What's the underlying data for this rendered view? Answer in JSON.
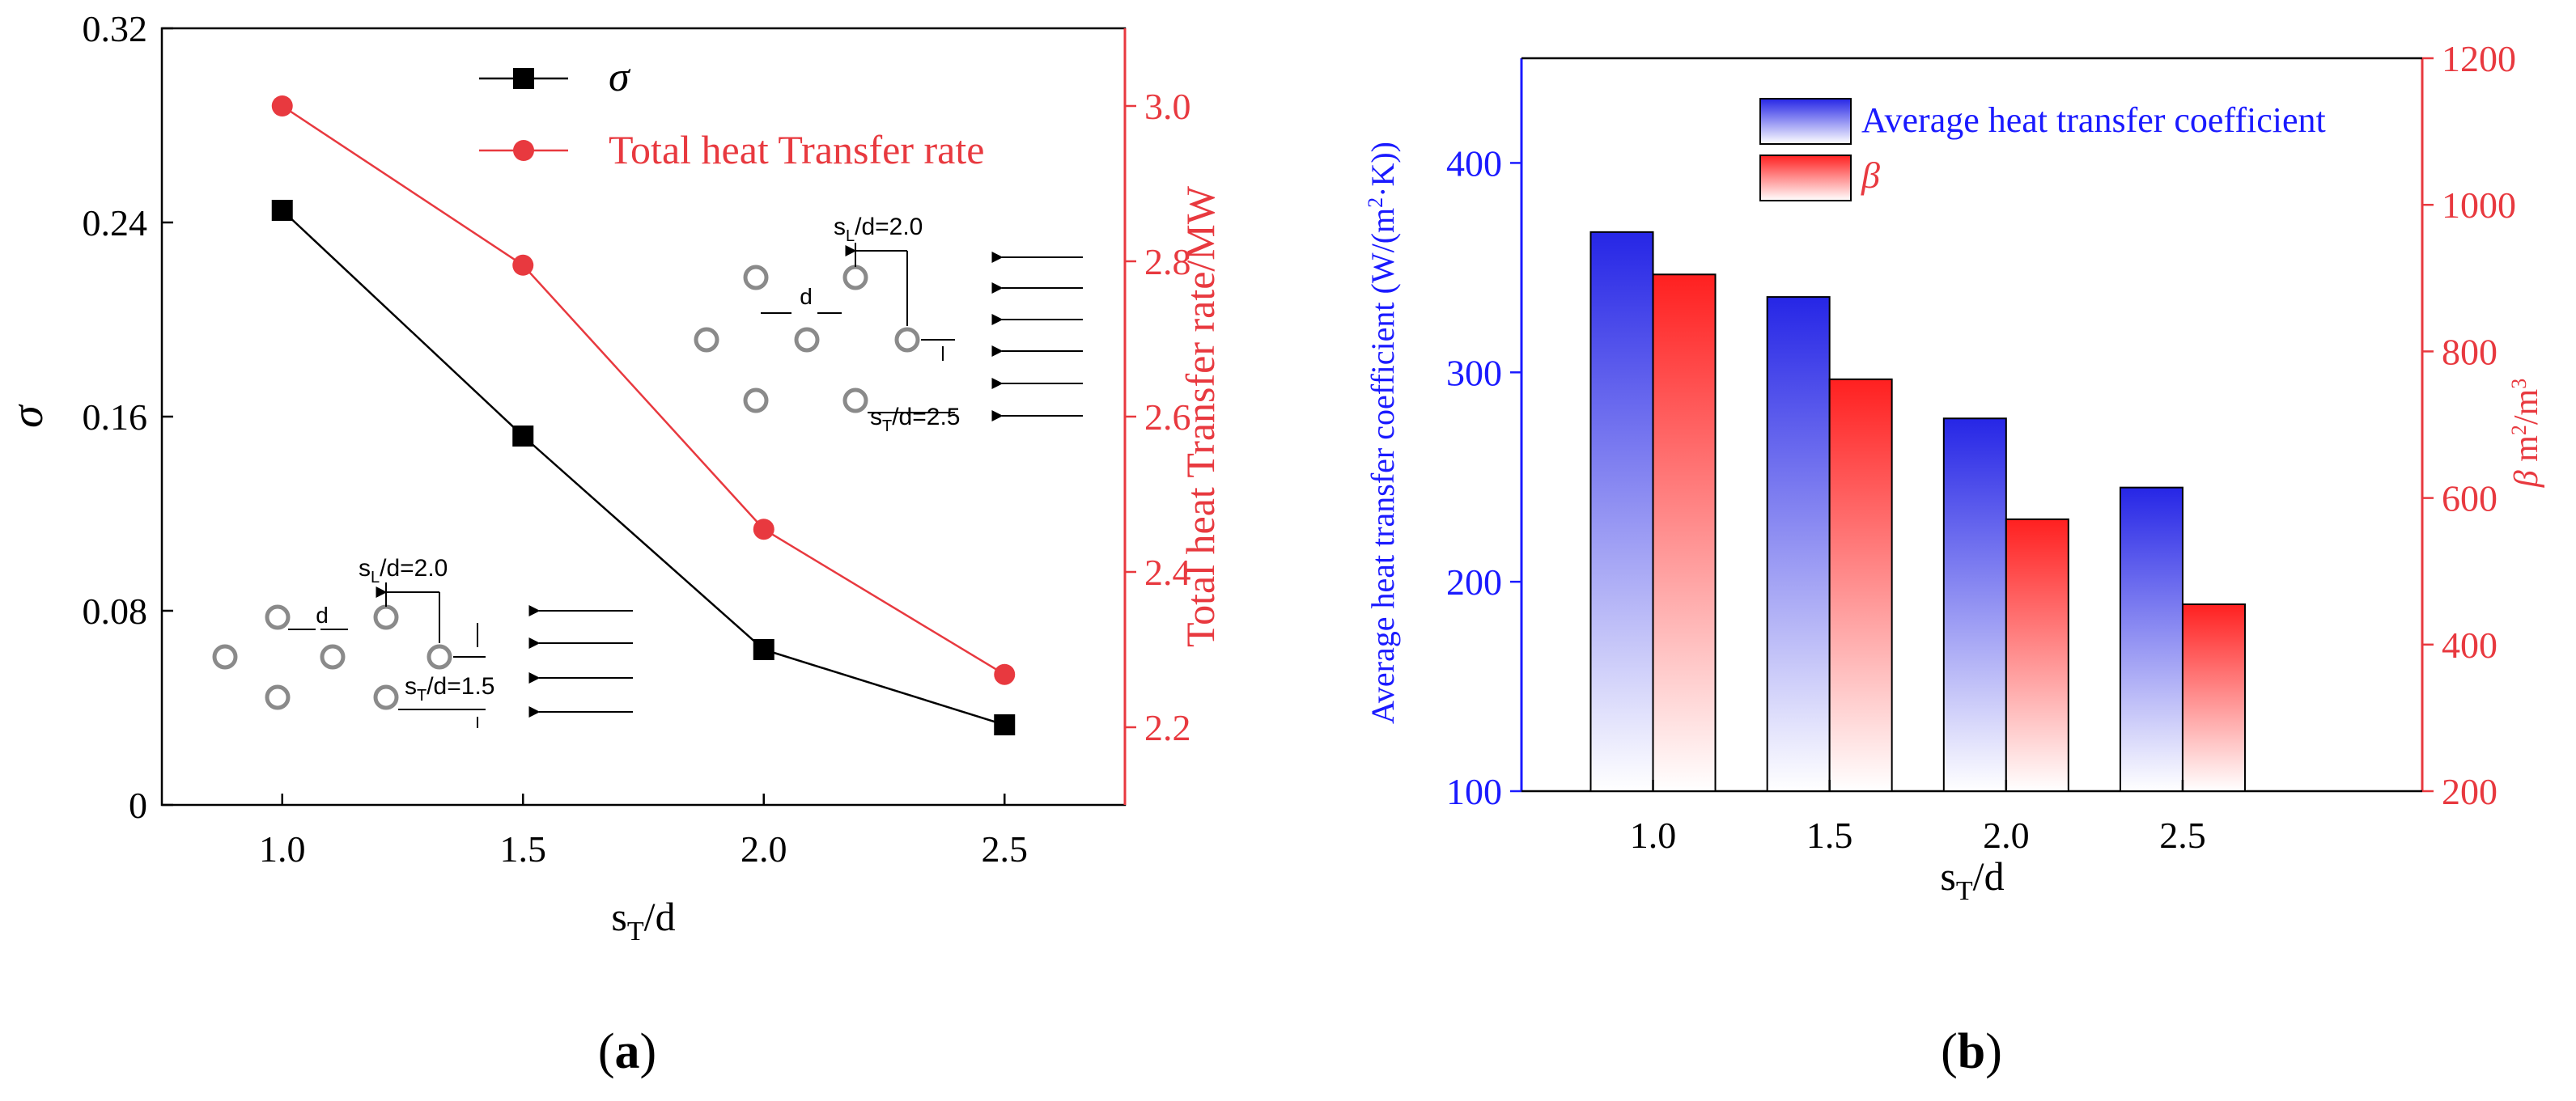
{
  "colors": {
    "black": "#000000",
    "red": "#e8393f",
    "blue": "#1a1aff",
    "bar_blue": "#2626e6",
    "bar_red": "#ff2020",
    "tube_gray": "#8a8a8a"
  },
  "chart_data": [
    {
      "panel": "(a)",
      "panel_label": {
        "open": "(",
        "letter": "a",
        "close": ")"
      },
      "type": "line",
      "x": [
        1.0,
        1.5,
        2.0,
        2.5
      ],
      "x_tick_labels": [
        "1.0",
        "1.5",
        "2.0",
        "2.5"
      ],
      "xlim": [
        0.75,
        2.75
      ],
      "xlabel": {
        "main": "s",
        "sub": "T",
        "rest": "/d"
      },
      "ylabel": "σ",
      "ylim": [
        0,
        0.32
      ],
      "y_ticks": [
        0,
        0.08,
        0.16,
        0.24,
        0.32
      ],
      "y_tick_labels": [
        "0",
        "0.08",
        "0.16",
        "0.24",
        "0.32"
      ],
      "y2label": "Total heat Transfer rate/MW",
      "y2lim": [
        2.1,
        3.1
      ],
      "y2_ticks": [
        2.2,
        2.4,
        2.6,
        2.8,
        3.0
      ],
      "y2_tick_labels": [
        "2.2",
        "2.4",
        "2.6",
        "2.8",
        "3.0"
      ],
      "series": [
        {
          "name": "σ",
          "axis": "left",
          "marker": "square",
          "color": "#000000",
          "values": [
            0.245,
            0.152,
            0.064,
            0.033
          ]
        },
        {
          "name": "Total heat Transfer rate",
          "axis": "right",
          "marker": "circle",
          "color": "#e8393f",
          "values": [
            3.0,
            2.795,
            2.455,
            2.268
          ]
        }
      ],
      "legend": [
        "σ",
        "Total heat Transfer rate"
      ],
      "legend_position": "top-center",
      "insets": [
        {
          "position": "lower-left",
          "sl_label": {
            "main": "s",
            "sub": "L",
            "rest": "/d=2.0"
          },
          "d_label": "d",
          "st_label": {
            "main": "s",
            "sub": "T",
            "rest": "/d=1.5"
          }
        },
        {
          "position": "upper-right",
          "sl_label": {
            "main": "s",
            "sub": "L",
            "rest": "/d=2.0"
          },
          "d_label": "d",
          "st_label": {
            "main": "s",
            "sub": "T",
            "rest": "/d=2.5"
          }
        }
      ]
    },
    {
      "panel": "(b)",
      "panel_label": {
        "open": "(",
        "letter": "b",
        "close": ")"
      },
      "type": "bar",
      "categories": [
        "1.0",
        "1.5",
        "2.0",
        "2.5"
      ],
      "xlabel": {
        "main": "s",
        "sub": "T",
        "rest": "/d"
      },
      "ylabel": "Average heat transfer coefficient (W/(m²·K))",
      "ylabel_parts": {
        "a": "Average heat transfer coefficient (W/(m",
        "b": "2",
        "c": "·K))"
      },
      "ylim": [
        100,
        450
      ],
      "y_ticks": [
        100,
        200,
        300,
        400
      ],
      "y_tick_labels": [
        "100",
        "200",
        "300",
        "400"
      ],
      "y2label": "β  m²/m³",
      "y2label_parts": {
        "beta": "β",
        "m1": "  m",
        "e1": "2",
        "m2": "/m",
        "e2": "3"
      },
      "y2lim": [
        200,
        1200
      ],
      "y2_ticks": [
        200,
        400,
        600,
        800,
        1000,
        1200
      ],
      "y2_tick_labels": [
        "200",
        "400",
        "600",
        "800",
        "1000",
        "1200"
      ],
      "series": [
        {
          "name": "Average heat transfer coefficient",
          "axis": "left",
          "color": "#2626e6",
          "values": [
            367,
            336,
            278,
            245
          ]
        },
        {
          "name": "β",
          "axis": "right",
          "color": "#ff2020",
          "values": [
            905,
            762,
            571,
            455
          ]
        }
      ],
      "legend": [
        "Average heat transfer coefficient",
        "β"
      ],
      "legend_position": "top-center"
    }
  ]
}
